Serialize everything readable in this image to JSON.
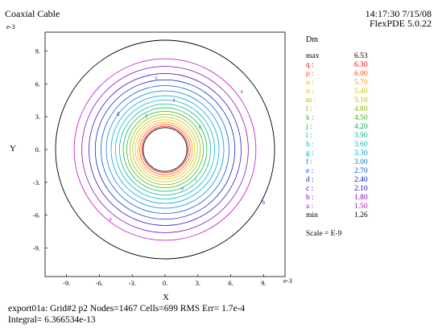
{
  "header": {
    "title": "Coaxial Cable",
    "timestamp": "14:17:30 7/15/08",
    "version": "FlexPDE 5.0.22"
  },
  "chart_data": {
    "type": "contour",
    "variable": "Dm",
    "xlabel": "X",
    "ylabel": "Y",
    "axis_exponent": "e-3",
    "xlim": [
      -11,
      11
    ],
    "ylim": [
      -11,
      11
    ],
    "xticks": [
      "-9.",
      "-6.",
      "-3.",
      "0.",
      "3.",
      "6.",
      "9."
    ],
    "xtick_values": [
      -9,
      -6,
      -3,
      0,
      3,
      6,
      9
    ],
    "yticks": [
      "9.",
      "6.",
      "3.",
      "0.",
      "-3.",
      "-6.",
      "-9."
    ],
    "ytick_values": [
      9,
      6,
      3,
      0,
      -3,
      -6,
      -9
    ],
    "outer_radius": 10,
    "inner_radius": 2,
    "levels": [
      {
        "label": "max",
        "value": "6.53",
        "color": "#000000",
        "radius": 2.0
      },
      {
        "label": "q",
        "value": "6.30",
        "color": "#ff0000",
        "radius": 2.12
      },
      {
        "label": "p",
        "value": "6.00",
        "color": "#ff4d00",
        "radius": 2.3
      },
      {
        "label": "o",
        "value": "5.70",
        "color": "#ff9900",
        "radius": 2.5
      },
      {
        "label": "n",
        "value": "5.40",
        "color": "#e0c000",
        "radius": 2.72
      },
      {
        "label": "m",
        "value": "5.10",
        "color": "#b8c000",
        "radius": 2.96
      },
      {
        "label": "l",
        "value": "4.80",
        "color": "#80c000",
        "radius": 3.22
      },
      {
        "label": "k",
        "value": "4.50",
        "color": "#30b800",
        "radius": 3.5
      },
      {
        "label": "j",
        "value": "4.20",
        "color": "#00b040",
        "radius": 3.82
      },
      {
        "label": "i",
        "value": "3.90",
        "color": "#00b890",
        "radius": 4.16
      },
      {
        "label": "h",
        "value": "3.60",
        "color": "#00b8c0",
        "radius": 4.53
      },
      {
        "label": "g",
        "value": "3.30",
        "color": "#00a0d8",
        "radius": 4.93
      },
      {
        "label": "f",
        "value": "3.00",
        "color": "#0080e0",
        "radius": 5.37
      },
      {
        "label": "e",
        "value": "2.70",
        "color": "#0050d8",
        "radius": 5.85
      },
      {
        "label": "d",
        "value": "2.40",
        "color": "#0020c0",
        "radius": 6.38
      },
      {
        "label": "c",
        "value": "2.10",
        "color": "#3000c8",
        "radius": 6.95
      },
      {
        "label": "b",
        "value": "1.80",
        "color": "#8000c8",
        "radius": 7.6
      },
      {
        "label": "a",
        "value": "1.50",
        "color": "#c000c8",
        "radius": 8.3
      },
      {
        "label": "min",
        "value": "1.26",
        "color": "#000000",
        "radius": 10.0
      }
    ],
    "contour_tags": [
      {
        "text": "a",
        "x": 7.0,
        "y": 5.2,
        "color": "#c000c8"
      },
      {
        "text": "a",
        "x": -5.0,
        "y": -6.5,
        "color": "#c000c8"
      },
      {
        "text": "c",
        "x": -0.8,
        "y": 6.4,
        "color": "#3000c8"
      },
      {
        "text": "d",
        "x": -4.3,
        "y": 3.1,
        "color": "#0020c0"
      },
      {
        "text": "b",
        "x": 9.0,
        "y": -5.0,
        "color": "#8000c8"
      },
      {
        "text": "f",
        "x": -1.7,
        "y": 2.9,
        "color": "#0080e0"
      },
      {
        "text": "e",
        "x": 1.6,
        "y": -3.7,
        "color": "#0050d8"
      },
      {
        "text": "g",
        "x": 3.2,
        "y": 2.0,
        "color": "#00a0d8"
      },
      {
        "text": "i",
        "x": 2.8,
        "y": -2.9,
        "color": "#00b890"
      },
      {
        "text": "a",
        "x": 0.8,
        "y": 4.4,
        "color": "#c000c8"
      }
    ],
    "scale": "Scale = E-9"
  },
  "footer": {
    "stats": "export01a:  Grid#2  p2  Nodes=1467 Cells=699 RMS Err= 1.7e-4",
    "integral": "Integral=   6.366534e-13"
  }
}
